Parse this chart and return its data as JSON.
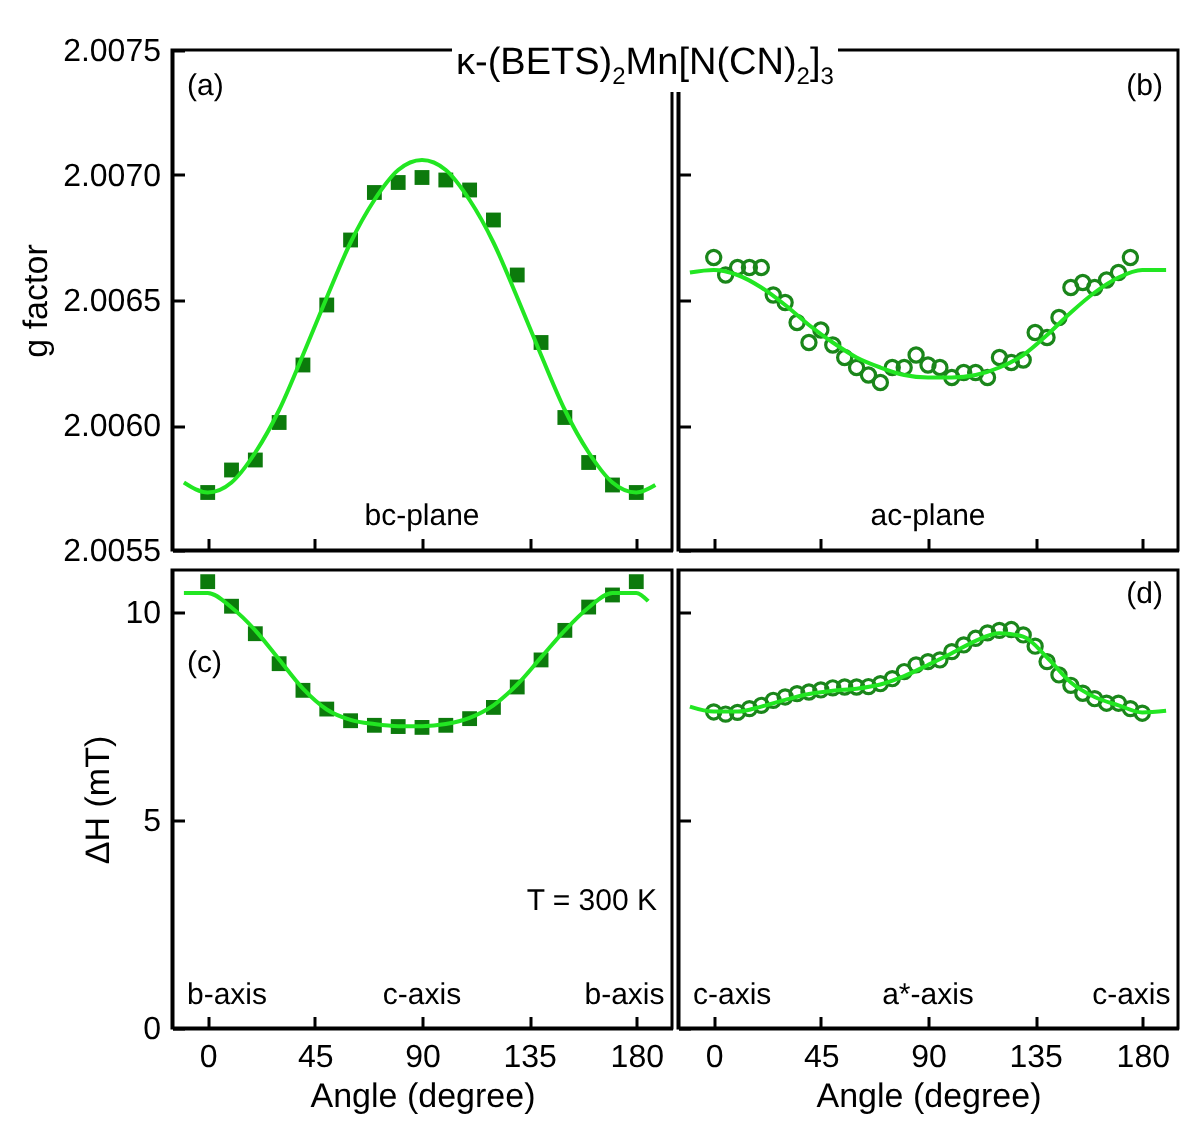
{
  "chart_data": [
    {
      "type": "scatter",
      "title": "κ-(BETS)$_{2}$Mn[N(CN)$_{2}$]$_{3}$",
      "ylabel": "g factor",
      "xlim": [
        -15,
        195
      ],
      "xticks": [
        0,
        45,
        90,
        135,
        180
      ],
      "ylim": [
        2.0055,
        2.0075
      ],
      "yticks": [
        2.0055,
        {
          "value": 2.006,
          "label": "2.0060"
        },
        2.0065,
        {
          "value": 2.007,
          "label": "2.0070"
        },
        2.0075
      ],
      "tick_labels": "y",
      "annotations": [
        "(a)",
        "bc-plane"
      ],
      "series": [
        {
          "type": "scatter",
          "marker": "square",
          "color": "#0c7a0c",
          "x": [
            0,
            10,
            20,
            30,
            40,
            50,
            60,
            70,
            80,
            90,
            100,
            110,
            120,
            130,
            140,
            150,
            160,
            170,
            180
          ],
          "values": [
            2.00573,
            2.00582,
            2.00586,
            2.00601,
            2.00624,
            2.00648,
            2.00674,
            2.00693,
            2.00697,
            2.00699,
            2.00698,
            2.00694,
            2.00682,
            2.0066,
            2.00633,
            2.00603,
            2.00585,
            2.00576,
            2.00573
          ]
        },
        {
          "type": "line",
          "color": "#22e622",
          "x": [
            -10,
            0,
            10,
            20,
            30,
            40,
            50,
            60,
            70,
            80,
            90,
            100,
            110,
            120,
            130,
            140,
            150,
            160,
            170,
            180,
            188
          ],
          "values": [
            2.00577,
            2.00573,
            2.00577,
            2.00589,
            2.00606,
            2.00628,
            2.00651,
            2.00673,
            2.0069,
            2.00702,
            2.00706,
            2.00702,
            2.0069,
            2.00673,
            2.00651,
            2.00628,
            2.00606,
            2.00589,
            2.00577,
            2.00573,
            2.00576
          ]
        }
      ]
    },
    {
      "type": "scatter",
      "xlim": [
        -15,
        195
      ],
      "xticks": [
        0,
        45,
        90,
        135,
        180
      ],
      "ylim": [
        2.0055,
        2.0075
      ],
      "yticks": [
        2.0055,
        2.006,
        2.0065,
        2.007,
        2.0075
      ],
      "tick_labels": false,
      "annotations": [
        "(b)",
        "ac-plane"
      ],
      "series": [
        {
          "type": "scatter",
          "marker": "circle",
          "color": "#1a861a",
          "x": [
            0,
            5,
            10,
            15,
            20,
            25,
            30,
            35,
            40,
            45,
            50,
            55,
            60,
            65,
            70,
            75,
            80,
            85,
            90,
            95,
            100,
            105,
            110,
            115,
            120,
            125,
            130,
            135,
            140,
            145,
            150,
            155,
            160,
            165,
            170,
            175
          ],
          "values": [
            2.00667,
            2.0066,
            2.00663,
            2.00663,
            2.00663,
            2.00652,
            2.00649,
            2.00641,
            2.00633,
            2.00638,
            2.00632,
            2.00627,
            2.00623,
            2.0062,
            2.00617,
            2.00623,
            2.00623,
            2.00628,
            2.00624,
            2.00623,
            2.00619,
            2.00621,
            2.00621,
            2.00619,
            2.00627,
            2.00625,
            2.00626,
            2.00637,
            2.00635,
            2.00643,
            2.00655,
            2.00657,
            2.00655,
            2.00658,
            2.00661,
            2.00667
          ]
        },
        {
          "type": "line",
          "color": "#22e622",
          "x": [
            -10,
            0,
            10,
            20,
            30,
            40,
            50,
            60,
            70,
            80,
            90,
            100,
            110,
            120,
            130,
            140,
            150,
            160,
            170,
            180,
            190
          ],
          "values": [
            2.00661,
            2.00662,
            2.0066,
            2.00655,
            2.00648,
            2.0064,
            2.00633,
            2.00627,
            2.00623,
            2.0062,
            2.00619,
            2.00619,
            2.0062,
            2.00623,
            2.00628,
            2.00636,
            2.00645,
            2.00653,
            2.00659,
            2.00662,
            2.00662
          ]
        }
      ]
    },
    {
      "type": "scatter",
      "xlabel": "Angle (degree)",
      "ylabel": "ΔH (mT)",
      "xlim": [
        -15,
        195
      ],
      "xticks": [
        0,
        45,
        90,
        135,
        180
      ],
      "ylim": [
        0,
        11
      ],
      "yticks": [
        0,
        5,
        10
      ],
      "annotations": [
        "(c)",
        "T = 300 K",
        "b-axis",
        "c-axis",
        "b-axis"
      ],
      "series": [
        {
          "type": "scatter",
          "marker": "square",
          "color": "#0c7a0c",
          "x": [
            0,
            10,
            20,
            30,
            40,
            50,
            60,
            70,
            80,
            90,
            100,
            110,
            120,
            130,
            140,
            150,
            160,
            170,
            180
          ],
          "values": [
            10.72,
            10.13,
            9.47,
            8.75,
            8.11,
            7.66,
            7.38,
            7.27,
            7.24,
            7.22,
            7.27,
            7.43,
            7.7,
            8.19,
            8.84,
            9.55,
            10.11,
            10.4,
            10.72
          ]
        },
        {
          "type": "line",
          "color": "#22e622",
          "x": [
            -10,
            0,
            10,
            20,
            30,
            40,
            50,
            60,
            70,
            80,
            90,
            100,
            110,
            120,
            130,
            140,
            150,
            160,
            170,
            180,
            185
          ],
          "values": [
            10.45,
            10.45,
            10.1,
            9.55,
            8.85,
            8.15,
            7.65,
            7.4,
            7.3,
            7.25,
            7.25,
            7.3,
            7.45,
            7.75,
            8.25,
            8.9,
            9.55,
            10.1,
            10.45,
            10.45,
            10.25
          ]
        }
      ]
    },
    {
      "type": "scatter",
      "xlabel": "Angle (degree)",
      "xlim": [
        -15,
        195
      ],
      "xticks": [
        0,
        45,
        90,
        135,
        180
      ],
      "ylim": [
        0,
        11
      ],
      "yticks": [
        0,
        5,
        10
      ],
      "tick_labels": "x",
      "annotations": [
        "(d)",
        "c-axis",
        "a*-axis",
        "c-axis"
      ],
      "series": [
        {
          "type": "scatter",
          "marker": "circle",
          "color": "#1a861a",
          "x": [
            0,
            5,
            10,
            15,
            20,
            25,
            30,
            35,
            40,
            45,
            50,
            55,
            60,
            65,
            70,
            75,
            80,
            85,
            90,
            95,
            100,
            105,
            110,
            115,
            120,
            125,
            130,
            135,
            140,
            145,
            150,
            155,
            160,
            165,
            170,
            175,
            180
          ],
          "values": [
            7.59,
            7.54,
            7.58,
            7.67,
            7.75,
            7.87,
            7.95,
            8.03,
            8.07,
            8.12,
            8.17,
            8.19,
            8.19,
            8.2,
            8.27,
            8.39,
            8.56,
            8.72,
            8.8,
            8.84,
            9.04,
            9.2,
            9.36,
            9.49,
            9.55,
            9.57,
            9.44,
            9.17,
            8.8,
            8.48,
            8.23,
            8.04,
            7.91,
            7.8,
            7.8,
            7.67,
            7.56
          ]
        },
        {
          "type": "line",
          "color": "#22e622",
          "x": [
            -10,
            0,
            10,
            20,
            30,
            40,
            50,
            60,
            70,
            80,
            90,
            100,
            110,
            120,
            130,
            140,
            150,
            160,
            170,
            180,
            190
          ],
          "values": [
            7.72,
            7.6,
            7.6,
            7.72,
            7.88,
            8.02,
            8.1,
            8.15,
            8.25,
            8.45,
            8.72,
            9.0,
            9.3,
            9.48,
            9.4,
            8.9,
            8.3,
            7.95,
            7.75,
            7.58,
            7.62
          ]
        }
      ]
    }
  ]
}
